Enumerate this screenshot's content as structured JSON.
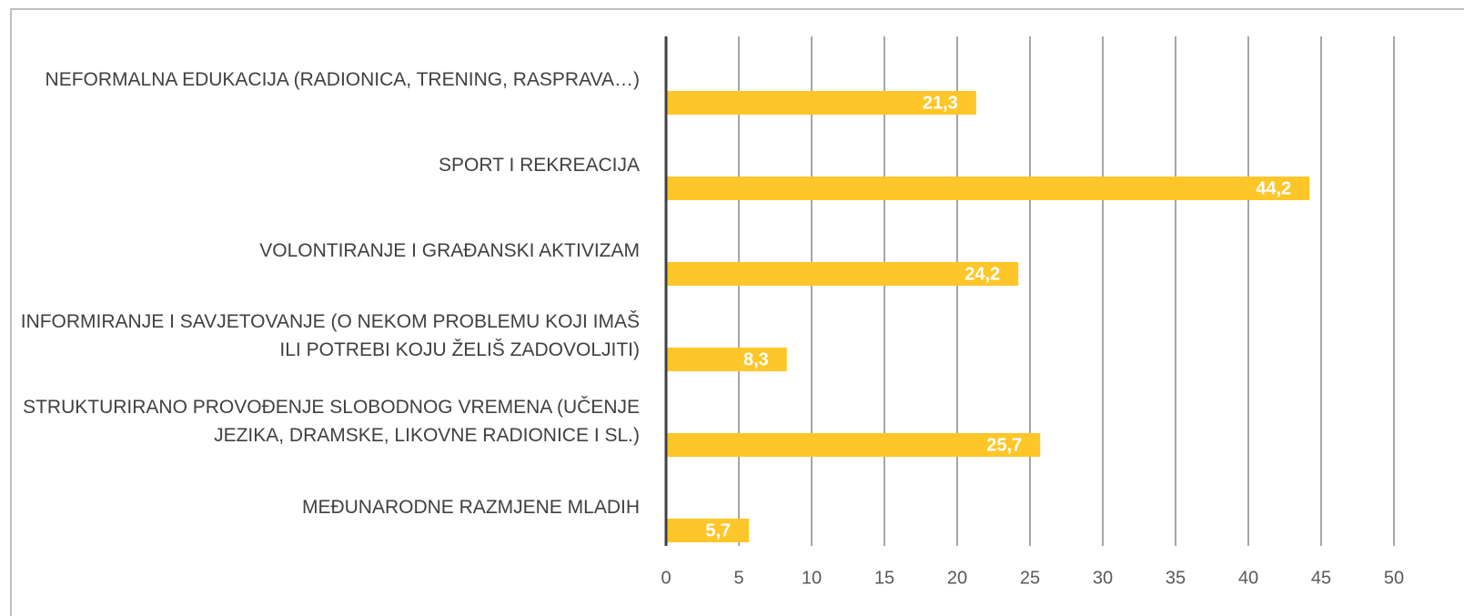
{
  "chart_data": {
    "type": "bar",
    "orientation": "horizontal",
    "categories": [
      "NEFORMALNA EDUKACIJA (RADIONICA, TRENING, RASPRAVA…)",
      "SPORT I REKREACIJA",
      "VOLONTIRANJE I GRAĐANSKI AKTIVIZAM",
      "INFORMIRANJE I SAVJETOVANJE (O NEKOM PROBLEMU KOJI IMAŠ ILI POTREBI KOJU ŽELIŠ ZADOVOLJITI)",
      "STRUKTURIRANO PROVOĐENJE SLOBODNOG VREMENA (UČENJE JEZIKA, DRAMSKE, LIKOVNE RADIONICE I SL.)",
      "MEĐUNARODNE RAZMJENE MLADIH"
    ],
    "values": [
      21.3,
      44.2,
      24.2,
      8.3,
      25.7,
      5.7
    ],
    "value_labels": [
      "21,3",
      "44,2",
      "24,2",
      "8,3",
      "25,7",
      "5,7"
    ],
    "color": "#ffc629",
    "xlim": [
      0,
      50
    ],
    "xticks": [
      0,
      5,
      10,
      15,
      20,
      25,
      30,
      35,
      40,
      45,
      50
    ],
    "grid": true
  }
}
